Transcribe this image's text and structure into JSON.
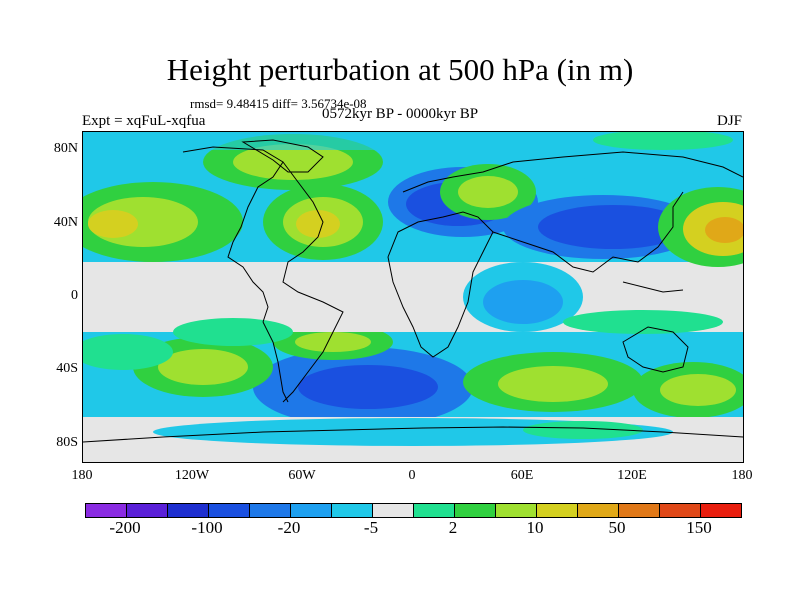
{
  "title": "Height perturbation at 500 hPa (in m)",
  "stats": "rmsd= 9.48415 diff= 3.56734e-08",
  "period": "0572kyr BP - 0000kyr BP",
  "expt": "Expt = xqFuL-xqfua",
  "season": "DJF",
  "lat_labels": [
    "80N",
    "40N",
    "0",
    "40S",
    "80S"
  ],
  "lon_labels": [
    "180",
    "120W",
    "60W",
    "0",
    "60E",
    "120E",
    "180"
  ],
  "colorbar": {
    "labels": [
      "-200",
      "-100",
      "-20",
      "-5",
      "2",
      "10",
      "50",
      "150"
    ],
    "colors": [
      "#8a2be2",
      "#5a20d8",
      "#1e2fd0",
      "#1a50e0",
      "#1e78e8",
      "#1ea0f0",
      "#20c8e8",
      "#e6e6e6",
      "#20e090",
      "#30d040",
      "#9fe030",
      "#d4d020",
      "#e0a818",
      "#e07818",
      "#e04818",
      "#e81e0e"
    ]
  },
  "colors": {
    "neutral": "#e6e6e6",
    "cyan": "#20c8e8",
    "lightblue": "#1ea0f0",
    "blue": "#1e78e8",
    "darkblue": "#1a50e0",
    "deepblue": "#1e2fd0",
    "teal": "#20e090",
    "green": "#30d040",
    "lime": "#9fe030",
    "yellow": "#d4d020",
    "orange": "#e0a818"
  }
}
